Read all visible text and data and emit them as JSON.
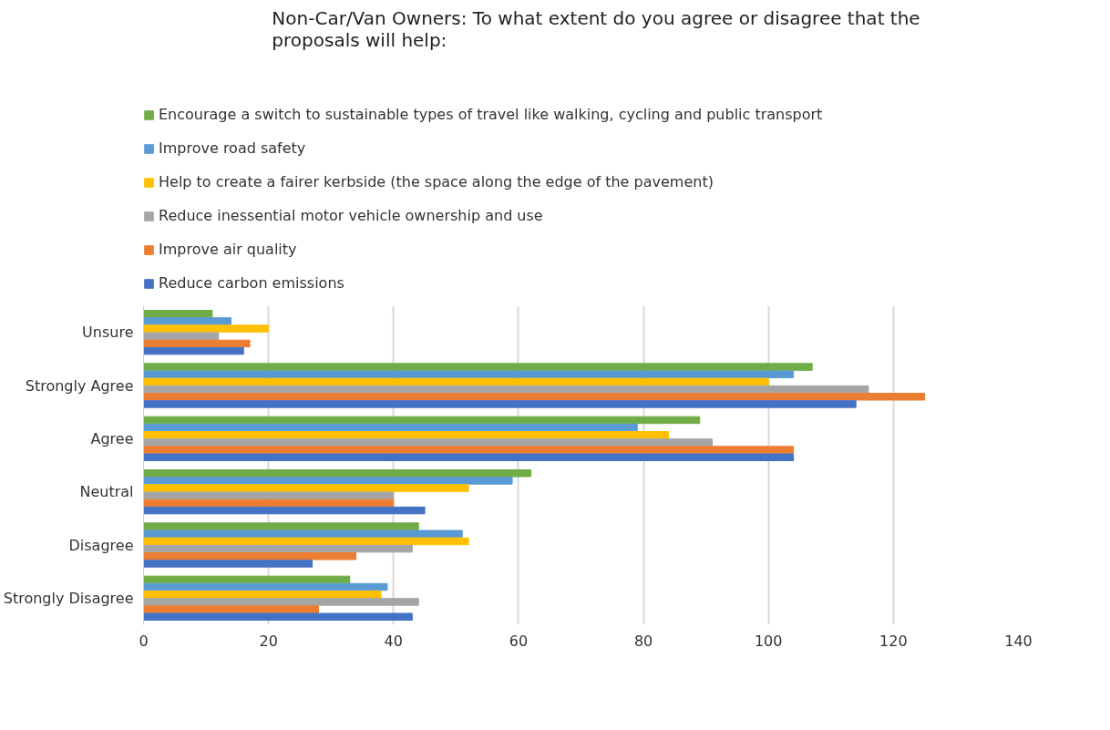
{
  "chart_data": {
    "type": "bar",
    "orientation": "horizontal",
    "title": "Non-Car/Van Owners: To what extent do you agree or disagree that the proposals will help:",
    "categories": [
      "Unsure",
      "Strongly Agree",
      "Agree",
      "Neutral",
      "Disagree",
      "Strongly Disagree"
    ],
    "series": [
      {
        "name": "Encourage a switch to sustainable types of travel like walking, cycling and public transport",
        "color": "#70ad47",
        "values": [
          11,
          107,
          89,
          62,
          44,
          33
        ]
      },
      {
        "name": "Improve road safety",
        "color": "#5b9bd5",
        "values": [
          14,
          104,
          79,
          59,
          51,
          39
        ]
      },
      {
        "name": "Help to create a fairer kerbside (the space along the edge of the pavement)",
        "color": "#ffc000",
        "values": [
          20,
          100,
          84,
          52,
          52,
          38
        ]
      },
      {
        "name": "Reduce inessential motor vehicle ownership and use",
        "color": "#a5a5a5",
        "values": [
          12,
          116,
          91,
          40,
          43,
          44
        ]
      },
      {
        "name": "Improve air quality",
        "color": "#ed7d31",
        "values": [
          17,
          125,
          104,
          40,
          34,
          28
        ]
      },
      {
        "name": "Reduce carbon emissions",
        "color": "#4472c4",
        "values": [
          16,
          114,
          104,
          45,
          27,
          43
        ]
      }
    ],
    "xlim": [
      0,
      140
    ],
    "xticks": [
      0,
      20,
      40,
      60,
      80,
      100,
      120,
      140
    ],
    "grid": "x",
    "legend": "top"
  }
}
